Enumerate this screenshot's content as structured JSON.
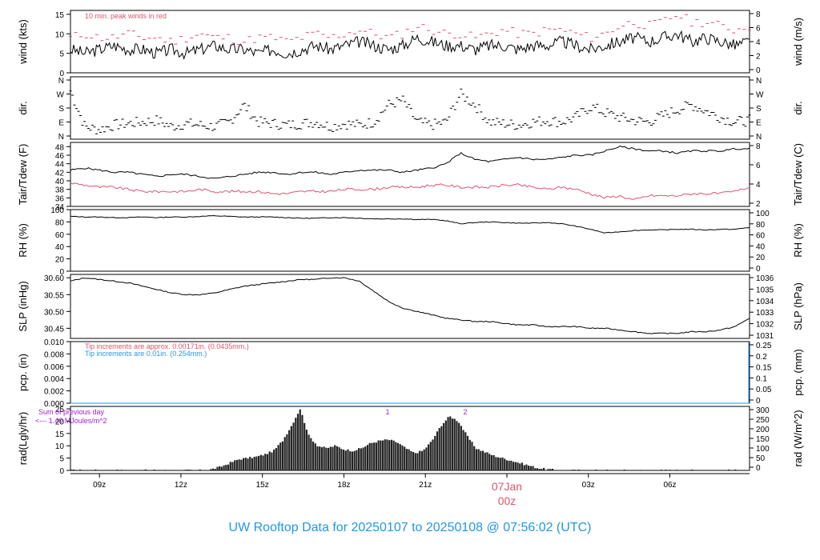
{
  "title": "UW Rooftop Data for 20250107  to  20250108 @ 07:56:02  (UTC)",
  "x_axis": {
    "ticks": [
      "09z",
      "12z",
      "15z",
      "18z",
      "21z",
      "07Jan",
      "03z",
      "06z"
    ],
    "date_label": "07Jan",
    "date_sublabel": "00z"
  },
  "colors": {
    "primary": "#000000",
    "dew_point": "#df536b",
    "annotation_red": "#df536b",
    "annotation_blue": "#2297e6",
    "annotation_purple": "#9d1ed6",
    "title": "#2297e6"
  },
  "chart_data": [
    {
      "type": "line",
      "id": "wind",
      "ylabel": "wind (kts)",
      "ylabel_right": "wind (m/s)",
      "ylim": [
        0,
        16
      ],
      "yticks": [
        0,
        5,
        10,
        15
      ],
      "yticks_right": [
        0,
        2,
        4,
        6,
        8
      ],
      "annotation": "10 min. peak winds in red",
      "series": [
        {
          "values": [
            6,
            5,
            6,
            7,
            6,
            6,
            5,
            6,
            5,
            6,
            7,
            6,
            6,
            5,
            6,
            5,
            6,
            7,
            6,
            7,
            8,
            7,
            6,
            7,
            9,
            8,
            7,
            7,
            6,
            7,
            7,
            6,
            7,
            7,
            8,
            7,
            6,
            7,
            8,
            9,
            8,
            9,
            10,
            8,
            9,
            8,
            7,
            8
          ]
        },
        {
          "values": [
            9,
            10,
            9,
            9,
            10,
            9,
            9,
            8,
            9,
            10,
            9,
            9,
            8,
            9,
            9,
            8,
            9,
            10,
            9,
            10,
            11,
            10,
            9,
            10,
            12,
            11,
            10,
            10,
            9,
            10,
            11,
            10,
            10,
            11,
            11,
            10,
            9,
            10,
            12,
            13,
            12,
            13,
            15,
            13,
            13,
            12,
            11,
            12
          ]
        }
      ]
    },
    {
      "type": "scatter",
      "id": "direction",
      "ylabel": "dir.",
      "ylabel_right": "dir.",
      "yticks": [
        "N",
        "E",
        "S",
        "W",
        "N"
      ],
      "yticks_right": [
        "N",
        "E",
        "S",
        "W",
        "N"
      ],
      "series": [
        {
          "values": [
            290,
            60,
            40,
            70,
            80,
            90,
            100,
            60,
            80,
            70,
            60,
            90,
            200,
            90,
            80,
            70,
            80,
            90,
            60,
            80,
            70,
            90,
            200,
            230,
            90,
            70,
            90,
            270,
            200,
            90,
            80,
            70,
            90,
            100,
            90,
            120,
            190,
            150,
            120,
            100,
            90,
            130,
            170,
            200,
            160,
            120,
            90,
            100
          ]
        }
      ]
    },
    {
      "type": "line",
      "id": "temperature",
      "ylabel": "Tair/Tdew (F)",
      "ylabel_right": "Tair/Tdew (C)",
      "ylim": [
        34,
        49
      ],
      "yticks": [
        34,
        36,
        38,
        40,
        42,
        44,
        46,
        48
      ],
      "yticks_right": [
        2,
        4,
        6,
        8
      ],
      "series": [
        {
          "values": [
            42.5,
            43,
            42.5,
            42,
            42,
            41.5,
            41,
            41.5,
            41.5,
            41,
            40.5,
            41,
            41.5,
            42,
            42,
            41.5,
            42,
            42,
            41.5,
            42,
            42.5,
            42.5,
            42.5,
            42,
            42.5,
            43,
            44,
            46.5,
            45,
            44.5,
            45,
            45.5,
            45,
            45,
            45.5,
            46,
            46,
            47,
            48,
            47.5,
            47,
            47,
            46.5,
            47,
            47,
            47,
            47.5,
            47.5
          ]
        },
        {
          "values": [
            39.5,
            39,
            38.5,
            38.5,
            38,
            37.5,
            37.5,
            37.5,
            37.5,
            38,
            37.5,
            37.5,
            37.5,
            37.5,
            37,
            37,
            37.5,
            37.5,
            37.5,
            38,
            38,
            38,
            38.5,
            38.5,
            38.5,
            39,
            39,
            38.5,
            38.5,
            38.5,
            39,
            39,
            38.5,
            38,
            38.5,
            38,
            37,
            36,
            36.5,
            35.5,
            36.5,
            36.5,
            36.5,
            37,
            37,
            37,
            37.5,
            38.5
          ]
        }
      ]
    },
    {
      "type": "line",
      "id": "humidity",
      "ylabel": "RH (%)",
      "ylabel_right": "RH (%)",
      "ylim": [
        0,
        100
      ],
      "yticks": [
        0,
        20,
        40,
        60,
        80,
        100
      ],
      "series": [
        {
          "values": [
            89,
            88,
            88,
            87,
            87,
            88,
            87,
            88,
            88,
            89,
            90,
            89,
            88,
            88,
            88,
            87,
            86,
            86,
            87,
            87,
            86,
            85,
            85,
            85,
            84,
            84,
            82,
            77,
            79,
            80,
            79,
            78,
            78,
            79,
            77,
            73,
            68,
            62,
            64,
            66,
            67,
            67,
            68,
            68,
            67,
            68,
            68,
            71
          ]
        }
      ]
    },
    {
      "type": "line",
      "id": "pressure",
      "ylabel": "SLP (inHg)",
      "ylabel_right": "SLP (hPa)",
      "ylim": [
        30.42,
        30.61
      ],
      "yticks": [
        30.45,
        30.5,
        30.55,
        30.6
      ],
      "yticks_right": [
        1031,
        1032,
        1033,
        1034,
        1035,
        1036
      ],
      "series": [
        {
          "values": [
            30.59,
            30.6,
            30.595,
            30.59,
            30.585,
            30.575,
            30.565,
            30.555,
            30.55,
            30.55,
            30.555,
            30.565,
            30.575,
            30.58,
            30.585,
            30.59,
            30.595,
            30.595,
            30.6,
            30.6,
            30.59,
            30.56,
            30.53,
            30.51,
            30.5,
            30.49,
            30.48,
            30.475,
            30.47,
            30.47,
            30.465,
            30.46,
            30.46,
            30.455,
            30.455,
            30.455,
            30.45,
            30.45,
            30.445,
            30.44,
            30.435,
            30.435,
            30.435,
            30.44,
            30.44,
            30.445,
            30.455,
            30.48
          ]
        }
      ]
    },
    {
      "type": "line",
      "id": "precipitation",
      "ylabel": "pcp. (in)",
      "ylabel_right": "pcp. (mm)",
      "ylim": [
        0,
        0.01
      ],
      "yticks": [
        0,
        0.002,
        0.004,
        0.006,
        0.008,
        0.01
      ],
      "yticks_right": [
        0,
        0.05,
        0.1,
        0.15,
        0.2,
        0.25
      ],
      "annotations": [
        "Tip increments are approx. 0.00171in. (0.0435mm.)",
        "Tip increments are 0.01in. (0.254mm.)"
      ],
      "series": [
        {
          "values": [
            0,
            0
          ]
        }
      ]
    },
    {
      "type": "bar",
      "id": "radiation",
      "ylabel": "rad(Lgly/hr)",
      "ylabel_right": "rad (W/m^2)",
      "ylim": [
        0,
        26
      ],
      "yticks": [
        0,
        5,
        10,
        15,
        20,
        25
      ],
      "yticks_right": [
        0,
        50,
        100,
        150,
        200,
        250,
        300
      ],
      "annotation_lines": [
        "Sum of previous day",
        "<--- 1.40 MJoules/m^2"
      ],
      "markers": [
        "1",
        "2"
      ],
      "series": [
        {
          "values": [
            0,
            0,
            0,
            0,
            0,
            0,
            0,
            0,
            0,
            0,
            0,
            0,
            0,
            0,
            0,
            0,
            0.5,
            1.5,
            3,
            4.5,
            5,
            5.5,
            6.5,
            8,
            12,
            18,
            25,
            14,
            10,
            9,
            10,
            8.5,
            8,
            9,
            11,
            12,
            12.5,
            11.5,
            9,
            7,
            8,
            12,
            18,
            22,
            20,
            14,
            9,
            7.5,
            6,
            5,
            4,
            3,
            2,
            1,
            0.5,
            0.2,
            0,
            0,
            0,
            0,
            0,
            0,
            0,
            0,
            0,
            0,
            0,
            0,
            0,
            0,
            0,
            0,
            0,
            0,
            0,
            0,
            0,
            0
          ]
        }
      ]
    }
  ]
}
